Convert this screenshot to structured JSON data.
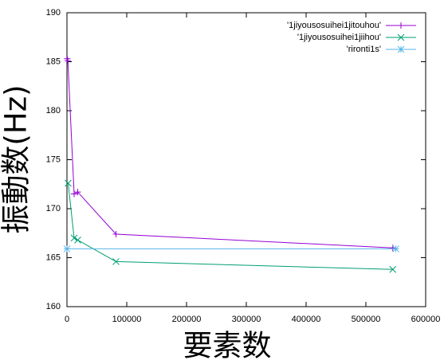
{
  "chart_data": {
    "type": "line",
    "xlabel": "要素数",
    "ylabel": "振動数(Hz)",
    "xlim": [
      0,
      600000
    ],
    "ylim": [
      160,
      190
    ],
    "xticks": [
      0,
      100000,
      200000,
      300000,
      400000,
      500000,
      600000
    ],
    "yticks": [
      160,
      165,
      170,
      175,
      180,
      185,
      190
    ],
    "legend": "top-right",
    "series": [
      {
        "name": "'1jiyousosuihei1jitouhou'",
        "color": "#9400d3",
        "marker": "plus",
        "x": [
          500,
          1500,
          12000,
          18000,
          82000,
          545000
        ],
        "values": [
          185.3,
          185.1,
          171.5,
          171.7,
          167.4,
          166.0
        ]
      },
      {
        "name": "'1jiyousosuihei1jiihou'",
        "color": "#009e73",
        "marker": "cross",
        "x": [
          2000,
          12000,
          18000,
          82000,
          545000
        ],
        "values": [
          172.6,
          167.0,
          166.8,
          164.6,
          163.8
        ]
      },
      {
        "name": "'rironti1s'",
        "color": "#56b4e9",
        "marker": "star",
        "x": [
          0,
          550000
        ],
        "values": [
          165.9,
          165.9
        ]
      }
    ]
  }
}
